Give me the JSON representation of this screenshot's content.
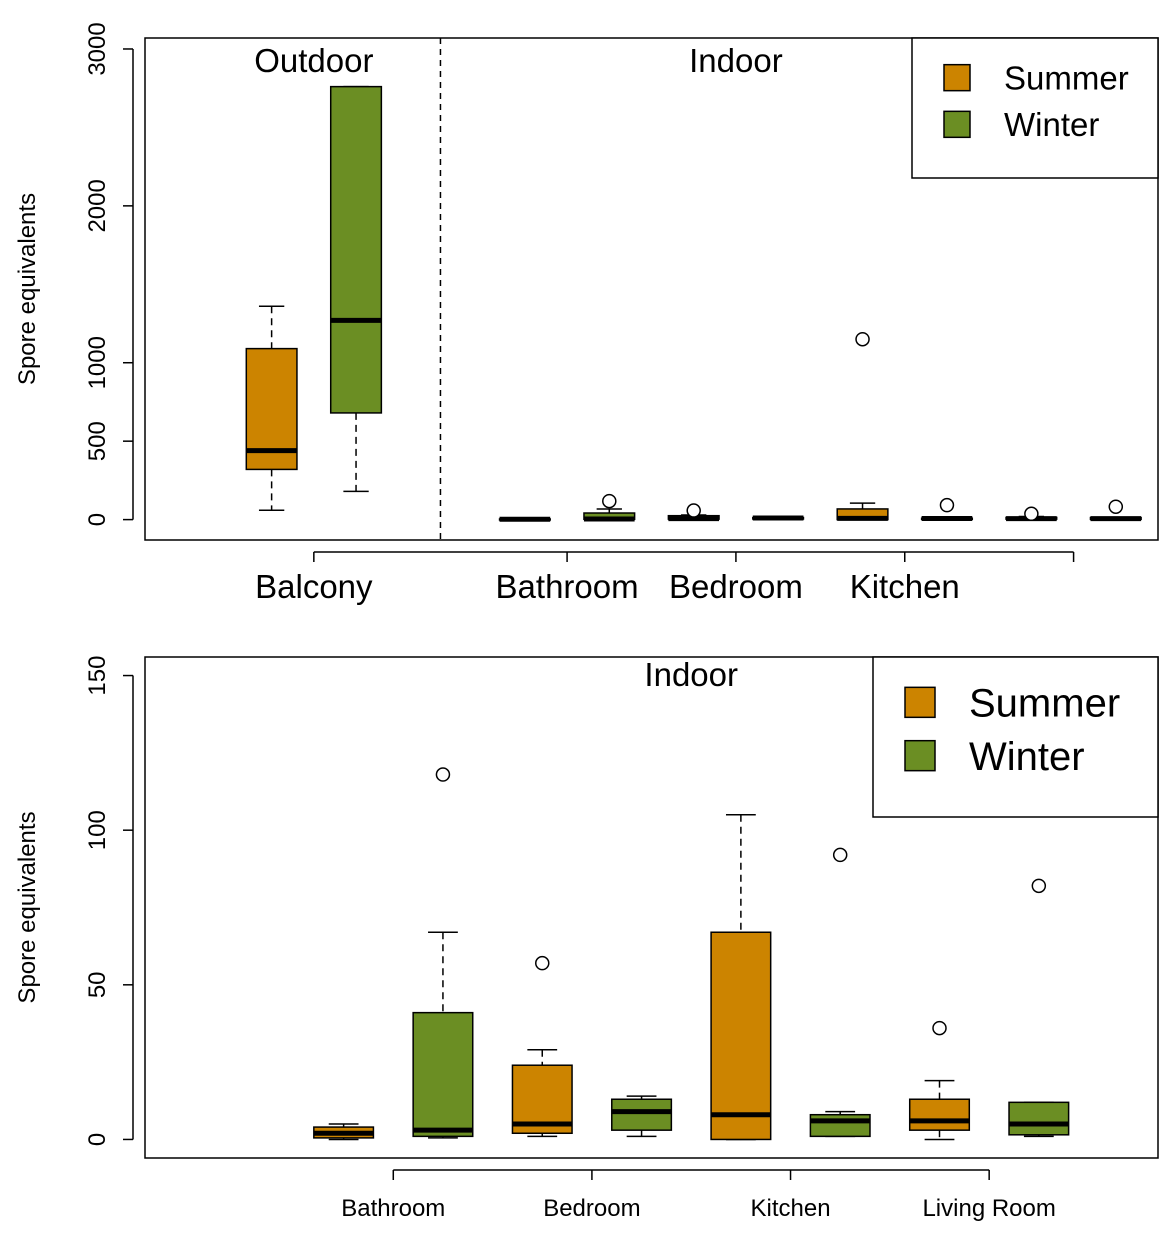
{
  "chart_data": [
    {
      "type": "box",
      "ylabel": "Spore equivalents",
      "xlabel": "",
      "yticks": [
        0,
        500,
        1000,
        2000,
        3000
      ],
      "ylim": [
        -130,
        3070
      ],
      "xlim": [
        0,
        10
      ],
      "categories": [
        "Balcony",
        "Bathroom",
        "Bedroom",
        "Kitchen",
        ""
      ],
      "region_labels": [
        "Outdoor",
        "Indoor"
      ],
      "colors": {
        "Summer": "#cc8400",
        "Winter": "#6b8e23"
      },
      "legend": {
        "position": "top-right",
        "entries": [
          "Summer",
          "Winter"
        ]
      },
      "series": [
        {
          "name": "Summer",
          "boxes": [
            {
              "category": "Balcony",
              "min": 60,
              "q1": 320,
              "median": 440,
              "q3": 1090,
              "max": 1360,
              "outliers": []
            },
            {
              "category": "Bathroom",
              "min": 0,
              "q1": 0,
              "median": 2,
              "q3": 4,
              "max": 5,
              "outliers": []
            },
            {
              "category": "Bedroom",
              "min": 1,
              "q1": 3,
              "median": 6,
              "q3": 25,
              "max": 29,
              "outliers": [
                58
              ]
            },
            {
              "category": "Kitchen",
              "min": 0,
              "q1": 0,
              "median": 8,
              "q3": 68,
              "max": 105,
              "outliers": [
                1150
              ]
            },
            {
              "category": "",
              "min": 0,
              "q1": 3,
              "median": 6,
              "q3": 14,
              "max": 20,
              "outliers": [
                37
              ]
            }
          ]
        },
        {
          "name": "Winter",
          "boxes": [
            {
              "category": "Balcony",
              "min": 180,
              "q1": 680,
              "median": 1270,
              "q3": 2760,
              "max": 2760,
              "outliers": []
            },
            {
              "category": "Bathroom",
              "min": 1,
              "q1": 2,
              "median": 4,
              "q3": 42,
              "max": 68,
              "outliers": [
                118
              ]
            },
            {
              "category": "Bedroom",
              "min": 2,
              "q1": 4,
              "median": 10,
              "q3": 13,
              "max": 15,
              "outliers": []
            },
            {
              "category": "Kitchen",
              "min": 1,
              "q1": 2,
              "median": 7,
              "q3": 9,
              "max": 9,
              "outliers": [
                92
              ]
            },
            {
              "category": "",
              "min": 1,
              "q1": 2,
              "median": 6,
              "q3": 13,
              "max": 13,
              "outliers": [
                82
              ]
            }
          ]
        }
      ]
    },
    {
      "type": "box",
      "ylabel": "Spore equivalents",
      "xlabel": "",
      "yticks": [
        0,
        50,
        100,
        150
      ],
      "ylim": [
        -6,
        156
      ],
      "xlim": [
        0,
        10
      ],
      "categories": [
        "Bathroom",
        "Bedroom",
        "Kitchen",
        "Living Room"
      ],
      "region_labels": [
        "Indoor"
      ],
      "colors": {
        "Summer": "#cc8400",
        "Winter": "#6b8e23"
      },
      "legend": {
        "position": "top-right",
        "entries": [
          "Summer",
          "Winter"
        ]
      },
      "series": [
        {
          "name": "Summer",
          "boxes": [
            {
              "category": "Bathroom",
              "min": 0,
              "q1": 0.5,
              "median": 2,
              "q3": 4,
              "max": 5,
              "outliers": []
            },
            {
              "category": "Bedroom",
              "min": 1,
              "q1": 2,
              "median": 5,
              "q3": 24,
              "max": 29,
              "outliers": [
                57
              ]
            },
            {
              "category": "Kitchen",
              "min": 0,
              "q1": 0,
              "median": 8,
              "q3": 67,
              "max": 105,
              "outliers": []
            },
            {
              "category": "Living Room",
              "min": 0,
              "q1": 3,
              "median": 6,
              "q3": 13,
              "max": 19,
              "outliers": [
                36
              ]
            }
          ]
        },
        {
          "name": "Winter",
          "boxes": [
            {
              "category": "Bathroom",
              "min": 0.5,
              "q1": 1,
              "median": 3,
              "q3": 41,
              "max": 67,
              "outliers": [
                118
              ]
            },
            {
              "category": "Bedroom",
              "min": 1,
              "q1": 3,
              "median": 9,
              "q3": 13,
              "max": 14,
              "outliers": []
            },
            {
              "category": "Kitchen",
              "min": 1,
              "q1": 1,
              "median": 6,
              "q3": 8,
              "max": 9,
              "outliers": [
                92
              ]
            },
            {
              "category": "Living Room",
              "min": 1,
              "q1": 1.5,
              "median": 5,
              "q3": 12,
              "max": 12,
              "outliers": [
                82
              ]
            }
          ]
        }
      ]
    }
  ]
}
